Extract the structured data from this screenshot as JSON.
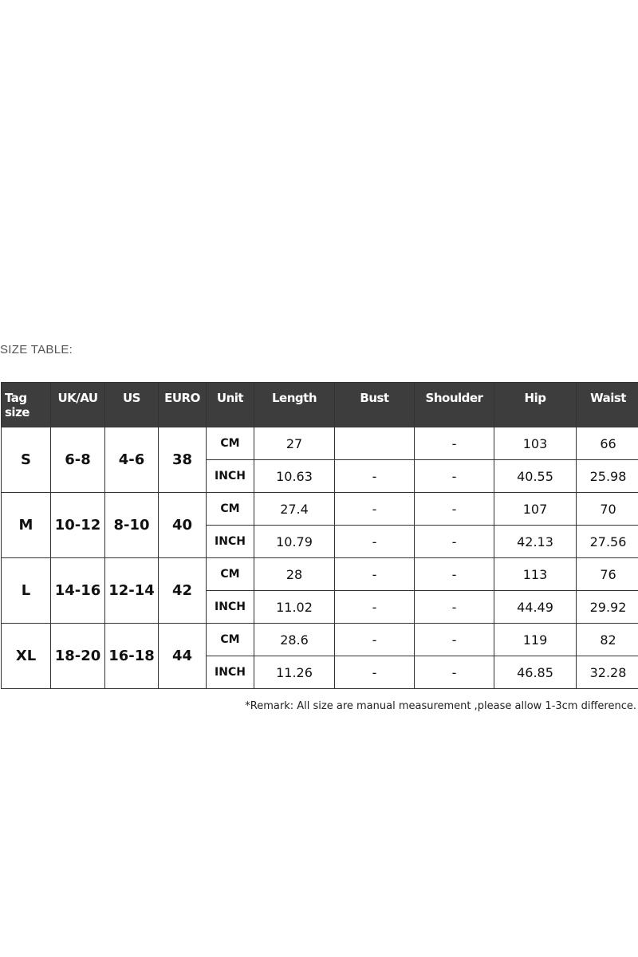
{
  "title": "SIZE TABLE:",
  "headers": [
    "Tag size",
    "UK/AU",
    "US",
    "EURO",
    "Unit",
    "Length",
    "Bust",
    "Shoulder",
    "Hip",
    "Waist"
  ],
  "rows": [
    {
      "tag": "S",
      "uk": "6-8",
      "us": "4-6",
      "euro": "38",
      "cm": {
        "unit": "CM",
        "length": "27",
        "bust": "",
        "shoulder": "-",
        "hip": "103",
        "waist": "66"
      },
      "inch": {
        "unit": "INCH",
        "length": "10.63",
        "bust": "-",
        "shoulder": "-",
        "hip": "40.55",
        "waist": "25.98"
      }
    },
    {
      "tag": "M",
      "uk": "10-12",
      "us": "8-10",
      "euro": "40",
      "cm": {
        "unit": "CM",
        "length": "27.4",
        "bust": "-",
        "shoulder": "-",
        "hip": "107",
        "waist": "70"
      },
      "inch": {
        "unit": "INCH",
        "length": "10.79",
        "bust": "-",
        "shoulder": "-",
        "hip": "42.13",
        "waist": "27.56"
      }
    },
    {
      "tag": "L",
      "uk": "14-16",
      "us": "12-14",
      "euro": "42",
      "cm": {
        "unit": "CM",
        "length": "28",
        "bust": "-",
        "shoulder": "-",
        "hip": "113",
        "waist": "76"
      },
      "inch": {
        "unit": "INCH",
        "length": "11.02",
        "bust": "-",
        "shoulder": "-",
        "hip": "44.49",
        "waist": "29.92"
      }
    },
    {
      "tag": "XL",
      "uk": "18-20",
      "us": "16-18",
      "euro": "44",
      "cm": {
        "unit": "CM",
        "length": "28.6",
        "bust": "-",
        "shoulder": "-",
        "hip": "119",
        "waist": "82"
      },
      "inch": {
        "unit": "INCH",
        "length": "11.26",
        "bust": "-",
        "shoulder": "-",
        "hip": "46.85",
        "waist": "32.28"
      }
    }
  ],
  "remark": "*Remark: All size are manual measurement ,please allow 1-3cm difference."
}
